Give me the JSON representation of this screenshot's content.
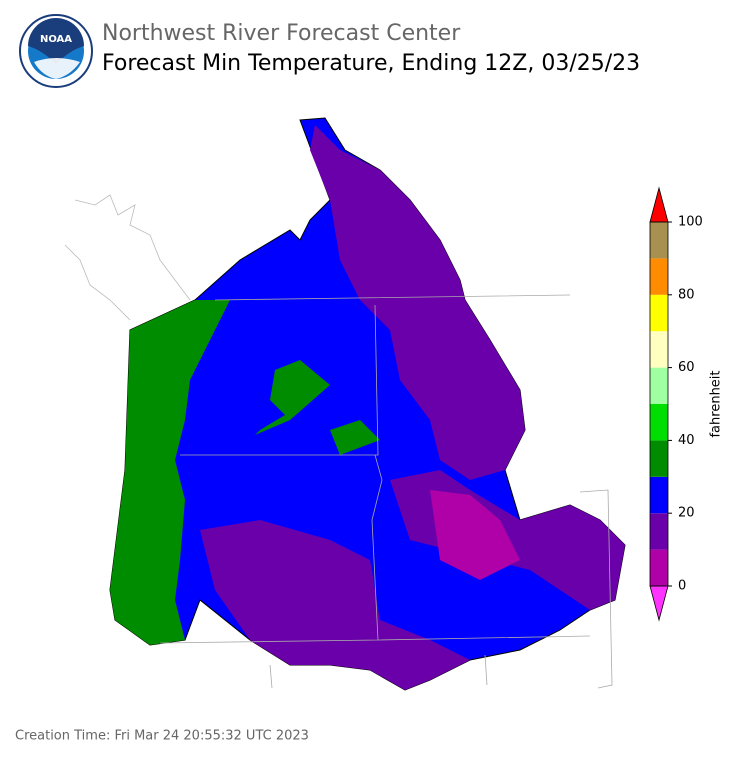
{
  "header": {
    "title": "Northwest River Forecast Center",
    "subtitle": "Forecast Min Temperature, Ending 12Z, 03/25/23",
    "logo": "NOAA"
  },
  "colorbar": {
    "label": "fahrenheit",
    "range": [
      0,
      100
    ],
    "ticks": [
      0,
      20,
      40,
      60,
      80,
      100
    ],
    "bounds": [
      0,
      10,
      20,
      30,
      40,
      50,
      60,
      70,
      80,
      90,
      100
    ],
    "colors": [
      "#b000a8",
      "#6a00aa",
      "#0000ff",
      "#008c00",
      "#00dd00",
      "#a0ffa0",
      "#ffffc0",
      "#ffff00",
      "#ff8c00",
      "#a89050"
    ],
    "under": "#ff33ff",
    "over": "#ff0000"
  },
  "footer": {
    "creation_time": "Creation Time: Fri Mar 24 20:55:32 UTC 2023"
  }
}
